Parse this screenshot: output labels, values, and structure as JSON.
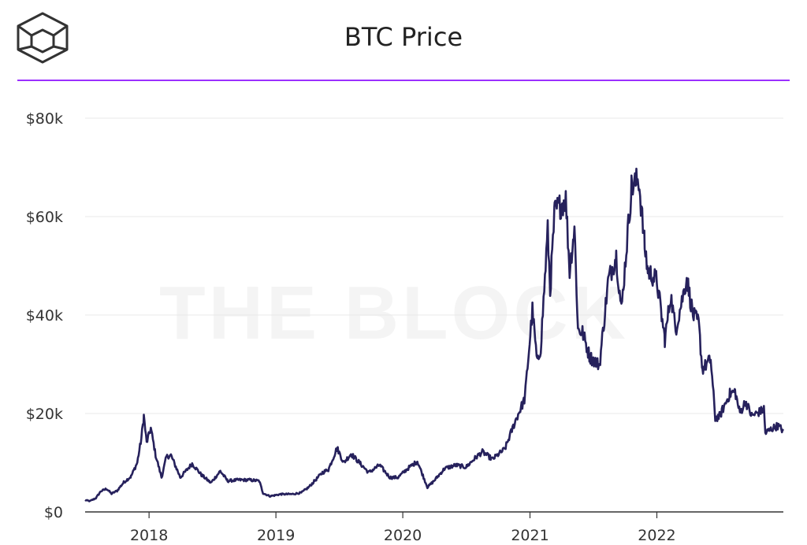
{
  "title": "BTC Price",
  "watermark": "THE BLOCK",
  "colors": {
    "line": "#26215c",
    "accent_rule": "#9b30ff",
    "grid": "#e8e8e8",
    "axis": "#333333"
  },
  "logo_icon": "the-block-cube-logo",
  "chart_data": {
    "type": "line",
    "title": "BTC Price",
    "xlabel": "",
    "ylabel": "",
    "ylim": [
      0,
      80000
    ],
    "yticks": [
      0,
      20000,
      40000,
      60000,
      80000
    ],
    "ytick_labels": [
      "$0",
      "$20k",
      "$40k",
      "$60k",
      "$80k"
    ],
    "xtick_labels": [
      "2018",
      "2019",
      "2020",
      "2021",
      "2022"
    ],
    "xtick_years": [
      2018,
      2019,
      2020,
      2021,
      2022
    ],
    "xlim": [
      "2017-07-01",
      "2022-12-31"
    ],
    "grid": true,
    "legend": "none",
    "series": [
      {
        "values": [
          [
            "2017-07-01",
            2400
          ],
          [
            "2017-07-15",
            2200
          ],
          [
            "2017-08-01",
            2800
          ],
          [
            "2017-08-15",
            4200
          ],
          [
            "2017-09-01",
            4700
          ],
          [
            "2017-09-15",
            3700
          ],
          [
            "2017-10-01",
            4300
          ],
          [
            "2017-10-20",
            6000
          ],
          [
            "2017-11-10",
            7200
          ],
          [
            "2017-11-28",
            10000
          ],
          [
            "2017-12-10",
            15000
          ],
          [
            "2017-12-17",
            19500
          ],
          [
            "2017-12-25",
            14000
          ],
          [
            "2018-01-06",
            17000
          ],
          [
            "2018-01-20",
            11500
          ],
          [
            "2018-02-06",
            7000
          ],
          [
            "2018-02-20",
            11200
          ],
          [
            "2018-03-05",
            11500
          ],
          [
            "2018-04-01",
            7000
          ],
          [
            "2018-05-05",
            9800
          ],
          [
            "2018-06-01",
            7500
          ],
          [
            "2018-06-28",
            5900
          ],
          [
            "2018-07-25",
            8300
          ],
          [
            "2018-08-15",
            6300
          ],
          [
            "2018-09-15",
            6500
          ],
          [
            "2018-10-15",
            6500
          ],
          [
            "2018-11-14",
            6300
          ],
          [
            "2018-11-25",
            3800
          ],
          [
            "2018-12-15",
            3200
          ],
          [
            "2019-01-15",
            3600
          ],
          [
            "2019-02-15",
            3600
          ],
          [
            "2019-03-15",
            3900
          ],
          [
            "2019-04-05",
            5000
          ],
          [
            "2019-05-15",
            8000
          ],
          [
            "2019-06-01",
            8600
          ],
          [
            "2019-06-26",
            13000
          ],
          [
            "2019-07-15",
            10000
          ],
          [
            "2019-08-05",
            11800
          ],
          [
            "2019-09-01",
            9800
          ],
          [
            "2019-09-25",
            8000
          ],
          [
            "2019-10-26",
            9500
          ],
          [
            "2019-11-25",
            7000
          ],
          [
            "2019-12-18",
            7000
          ],
          [
            "2020-01-15",
            8800
          ],
          [
            "2020-02-12",
            10300
          ],
          [
            "2020-03-12",
            5000
          ],
          [
            "2020-04-01",
            6400
          ],
          [
            "2020-04-30",
            8800
          ],
          [
            "2020-06-01",
            9500
          ],
          [
            "2020-07-01",
            9100
          ],
          [
            "2020-07-28",
            11000
          ],
          [
            "2020-08-17",
            12200
          ],
          [
            "2020-09-15",
            10700
          ],
          [
            "2020-10-21",
            12800
          ],
          [
            "2020-11-20",
            18500
          ],
          [
            "2020-12-17",
            23000
          ],
          [
            "2021-01-08",
            41000
          ],
          [
            "2021-01-22",
            30000
          ],
          [
            "2021-02-01",
            33500
          ],
          [
            "2021-02-21",
            57000
          ],
          [
            "2021-02-28",
            45000
          ],
          [
            "2021-03-13",
            61000
          ],
          [
            "2021-04-14",
            63500
          ],
          [
            "2021-04-25",
            49000
          ],
          [
            "2021-05-09",
            58000
          ],
          [
            "2021-05-19",
            37000
          ],
          [
            "2021-06-01",
            36500
          ],
          [
            "2021-06-22",
            31500
          ],
          [
            "2021-07-20",
            29800
          ],
          [
            "2021-08-14",
            47000
          ],
          [
            "2021-09-06",
            52000
          ],
          [
            "2021-09-21",
            41000
          ],
          [
            "2021-10-20",
            66000
          ],
          [
            "2021-11-10",
            67500
          ],
          [
            "2021-11-27",
            54000
          ],
          [
            "2021-12-06",
            49000
          ],
          [
            "2022-01-01",
            47000
          ],
          [
            "2022-01-24",
            35000
          ],
          [
            "2022-02-10",
            44000
          ],
          [
            "2022-02-24",
            37000
          ],
          [
            "2022-03-28",
            47500
          ],
          [
            "2022-04-15",
            40000
          ],
          [
            "2022-05-01",
            38500
          ],
          [
            "2022-05-12",
            29000
          ],
          [
            "2022-06-05",
            31000
          ],
          [
            "2022-06-18",
            19000
          ],
          [
            "2022-07-01",
            19500
          ],
          [
            "2022-07-30",
            24000
          ],
          [
            "2022-08-14",
            24500
          ],
          [
            "2022-08-28",
            20000
          ],
          [
            "2022-09-13",
            22500
          ],
          [
            "2022-10-01",
            19500
          ],
          [
            "2022-10-28",
            20500
          ],
          [
            "2022-11-05",
            21000
          ],
          [
            "2022-11-09",
            16000
          ],
          [
            "2022-11-30",
            17000
          ],
          [
            "2022-12-15",
            17500
          ],
          [
            "2022-12-31",
            16500
          ]
        ]
      }
    ]
  }
}
